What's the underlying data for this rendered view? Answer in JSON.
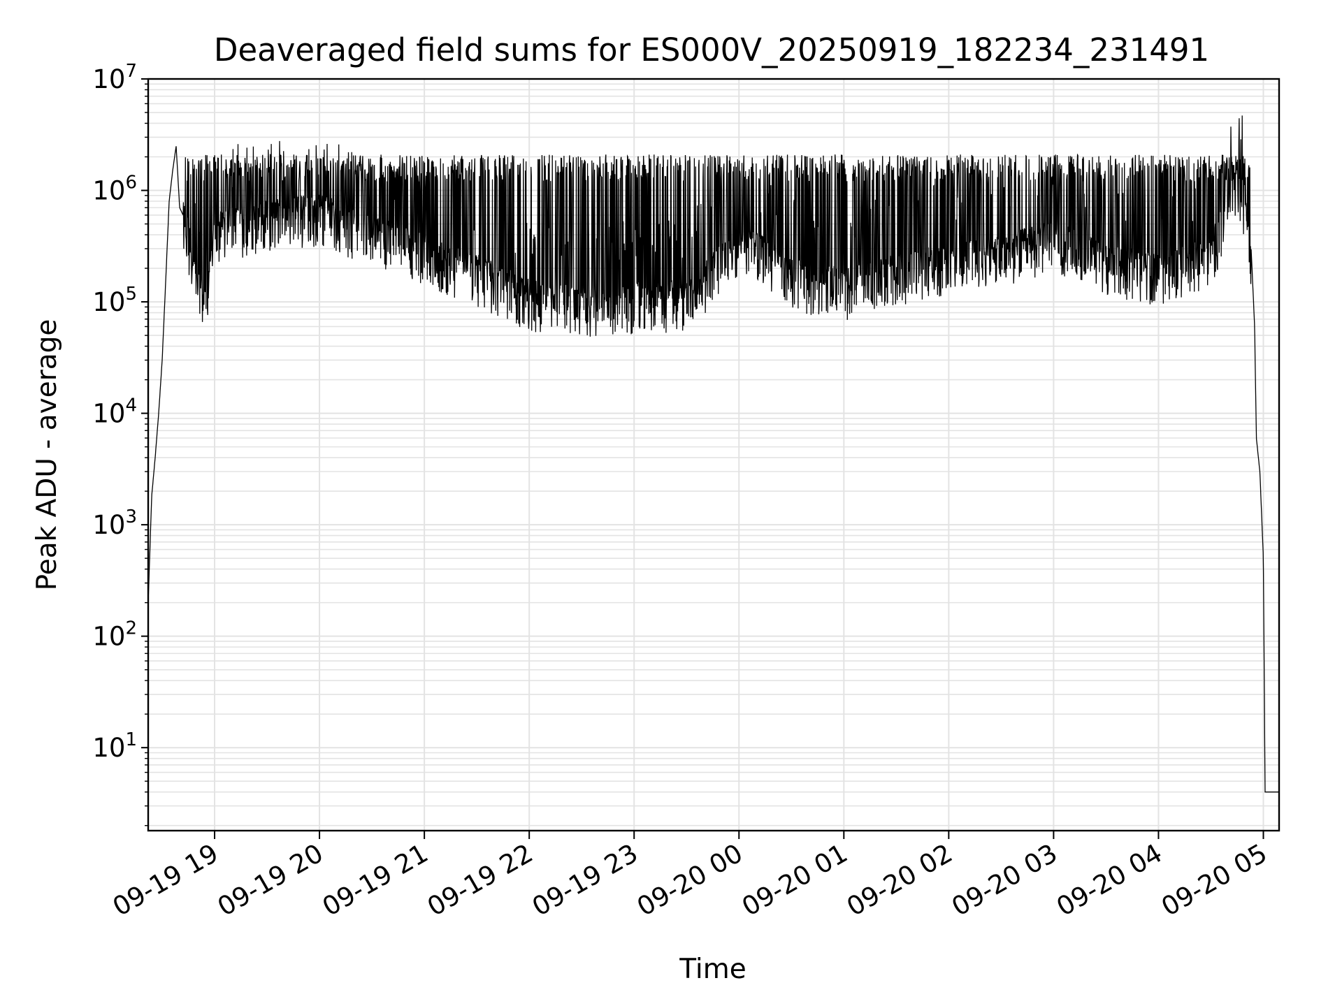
{
  "chart_data": {
    "type": "line",
    "title": "Deaveraged field sums for ES000V_20250919_182234_231491",
    "xlabel": "Time",
    "ylabel": "Peak ADU - average",
    "xlim": [
      "2025-09-19 18:22",
      "2025-09-20 05:09"
    ],
    "ylim": [
      1.8,
      10000000
    ],
    "yscale": "log",
    "grid": "both (major and minor)",
    "x_ticks": [
      "09-19 19",
      "09-19 20",
      "09-19 21",
      "09-19 22",
      "09-19 23",
      "09-20 00",
      "09-20 01",
      "09-20 02",
      "09-20 03",
      "09-20 04",
      "09-20 05"
    ],
    "y_ticks": [
      {
        "base": "10",
        "exp": "1"
      },
      {
        "base": "10",
        "exp": "2"
      },
      {
        "base": "10",
        "exp": "3"
      },
      {
        "base": "10",
        "exp": "4"
      },
      {
        "base": "10",
        "exp": "5"
      },
      {
        "base": "10",
        "exp": "6"
      },
      {
        "base": "10",
        "exp": "7"
      }
    ],
    "line_color": "#000000",
    "series": [
      {
        "x": [
          "2025-09-19 18:22",
          "2025-09-19 18:24",
          "2025-09-19 18:26",
          "2025-09-19 18:28",
          "2025-09-19 18:30",
          "2025-09-19 18:32",
          "2025-09-19 18:34",
          "2025-09-19 18:36",
          "2025-09-19 18:38",
          "2025-09-19 18:40",
          "2025-09-19 18:42",
          "2025-09-19 18:45",
          "2025-09-19 18:50",
          "2025-09-19 18:55",
          "2025-09-19 19:00",
          "2025-09-19 19:30",
          "2025-09-19 20:00",
          "2025-09-19 20:30",
          "2025-09-19 21:00",
          "2025-09-19 21:30",
          "2025-09-19 22:00",
          "2025-09-19 22:30",
          "2025-09-19 23:00",
          "2025-09-19 23:30",
          "2025-09-20 00:00",
          "2025-09-20 00:15",
          "2025-09-20 00:30",
          "2025-09-20 01:00",
          "2025-09-20 01:30",
          "2025-09-20 02:00",
          "2025-09-20 02:30",
          "2025-09-20 03:00",
          "2025-09-20 03:30",
          "2025-09-20 04:00",
          "2025-09-20 04:30",
          "2025-09-20 04:45",
          "2025-09-20 04:50",
          "2025-09-20 04:53",
          "2025-09-20 04:55",
          "2025-09-20 04:56",
          "2025-09-20 04:58",
          "2025-09-20 05:00",
          "2025-09-20 05:01",
          "2025-09-20 05:03",
          "2025-09-20 05:09"
        ],
        "y": [
          200,
          1800,
          4000,
          10000,
          30000,
          150000,
          800000,
          1500000,
          2500000,
          700000,
          600000,
          400000,
          150000,
          120000,
          500000,
          600000,
          700000,
          450000,
          300000,
          200000,
          120000,
          100000,
          110000,
          120000,
          350000,
          300000,
          180000,
          150000,
          200000,
          250000,
          300000,
          400000,
          250000,
          200000,
          300000,
          1200000,
          800000,
          300000,
          60000,
          6000,
          3000,
          500,
          4,
          4,
          4
        ]
      }
    ]
  }
}
